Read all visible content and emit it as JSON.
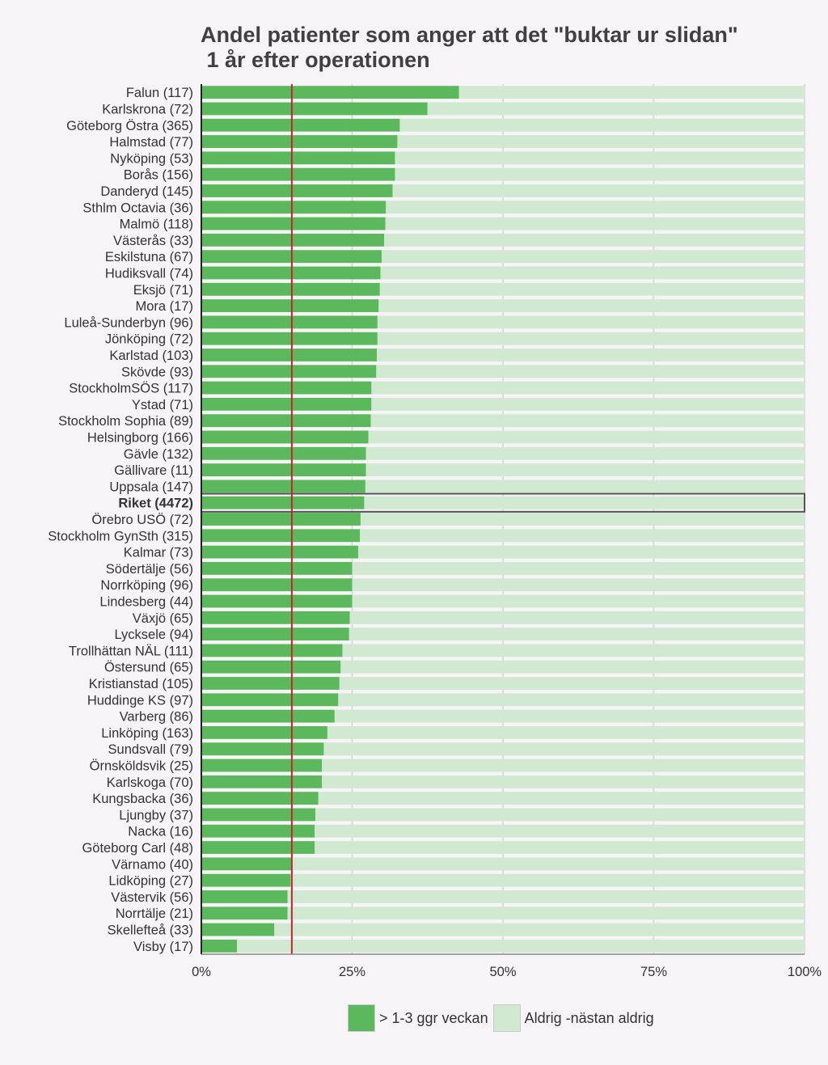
{
  "chart_data": {
    "type": "bar",
    "stacked": true,
    "orientation": "horizontal",
    "title": [
      "Andel patienter som anger att det \"buktar ur slidan\"",
      " 1 år efter operationen"
    ],
    "categories": [
      "Falun (117)",
      "Karlskrona (72)",
      "Göteborg Östra (365)",
      "Halmstad (77)",
      "Nyköping (53)",
      "Borås (156)",
      "Danderyd (145)",
      "Sthlm Octavia (36)",
      "Malmö (118)",
      "Västerås (33)",
      "Eskilstuna (67)",
      "Hudiksvall (74)",
      "Eksjö (71)",
      "Mora (17)",
      "Luleå-Sunderbyn (96)",
      "Jönköping (72)",
      "Karlstad (103)",
      "Skövde (93)",
      "StockholmSÖS (117)",
      "Ystad (71)",
      "Stockholm Sophia (89)",
      "Helsingborg (166)",
      "Gävle (132)",
      "Gällivare (11)",
      "Uppsala (147)",
      "Riket (4472)",
      "Örebro USÖ (72)",
      "Stockholm GynSth (315)",
      "Kalmar (73)",
      "Södertälje (56)",
      "Norrköping (96)",
      "Lindesberg (44)",
      "Växjö (65)",
      "Lycksele (94)",
      "Trollhättan NÄL (111)",
      "Östersund (65)",
      "Kristianstad (105)",
      "Huddinge KS (97)",
      "Varberg (86)",
      "Linköping (163)",
      "Sundsvall (79)",
      "Örnsköldsvik (25)",
      "Karlskoga (70)",
      "Kungsbacka (36)",
      "Ljungby (37)",
      "Nacka (16)",
      "Göteborg Carl (48)",
      "Värnamo (40)",
      "Lidköping (27)",
      "Västervik (56)",
      "Norrtälje (21)",
      "Skellefteå (33)",
      "Visby (17)"
    ],
    "highlight_category": "Riket (4472)",
    "series": [
      {
        "name": "> 1-3 ggr veckan",
        "color": "#5cb85c",
        "values": [
          42.7,
          37.5,
          32.9,
          32.5,
          32.1,
          32.1,
          31.7,
          30.6,
          30.5,
          30.3,
          29.9,
          29.7,
          29.6,
          29.4,
          29.2,
          29.2,
          29.1,
          29.0,
          28.2,
          28.2,
          28.1,
          27.7,
          27.3,
          27.3,
          27.2,
          27.0,
          26.4,
          26.3,
          26.0,
          25.0,
          25.0,
          25.0,
          24.6,
          24.5,
          23.4,
          23.1,
          22.9,
          22.7,
          22.1,
          20.9,
          20.3,
          20.0,
          20.0,
          19.4,
          18.9,
          18.8,
          18.8,
          15.0,
          14.8,
          14.3,
          14.3,
          12.1,
          5.9
        ]
      },
      {
        "name": "Aldrig -nästan aldrig",
        "color": "#d1e8d1",
        "values": [
          57.3,
          62.5,
          67.1,
          67.5,
          67.9,
          67.9,
          68.3,
          69.4,
          69.5,
          69.7,
          70.1,
          70.3,
          70.4,
          70.6,
          70.8,
          70.8,
          70.9,
          71.0,
          71.8,
          71.8,
          71.9,
          72.3,
          72.7,
          72.7,
          72.8,
          73.0,
          73.6,
          73.7,
          74.0,
          75.0,
          75.0,
          75.0,
          75.4,
          75.5,
          76.6,
          76.9,
          77.1,
          77.3,
          77.9,
          79.1,
          79.7,
          80.0,
          80.0,
          80.6,
          81.1,
          81.2,
          81.2,
          85.0,
          85.2,
          85.7,
          85.7,
          87.9,
          94.1
        ]
      }
    ],
    "reference_line": {
      "value": 15,
      "color": "#c0282c"
    },
    "x_ticks": [
      "0%",
      "25%",
      "50%",
      "75%",
      "100%"
    ],
    "xlim": [
      0,
      100
    ],
    "grid": true,
    "legend_position": "bottom"
  }
}
